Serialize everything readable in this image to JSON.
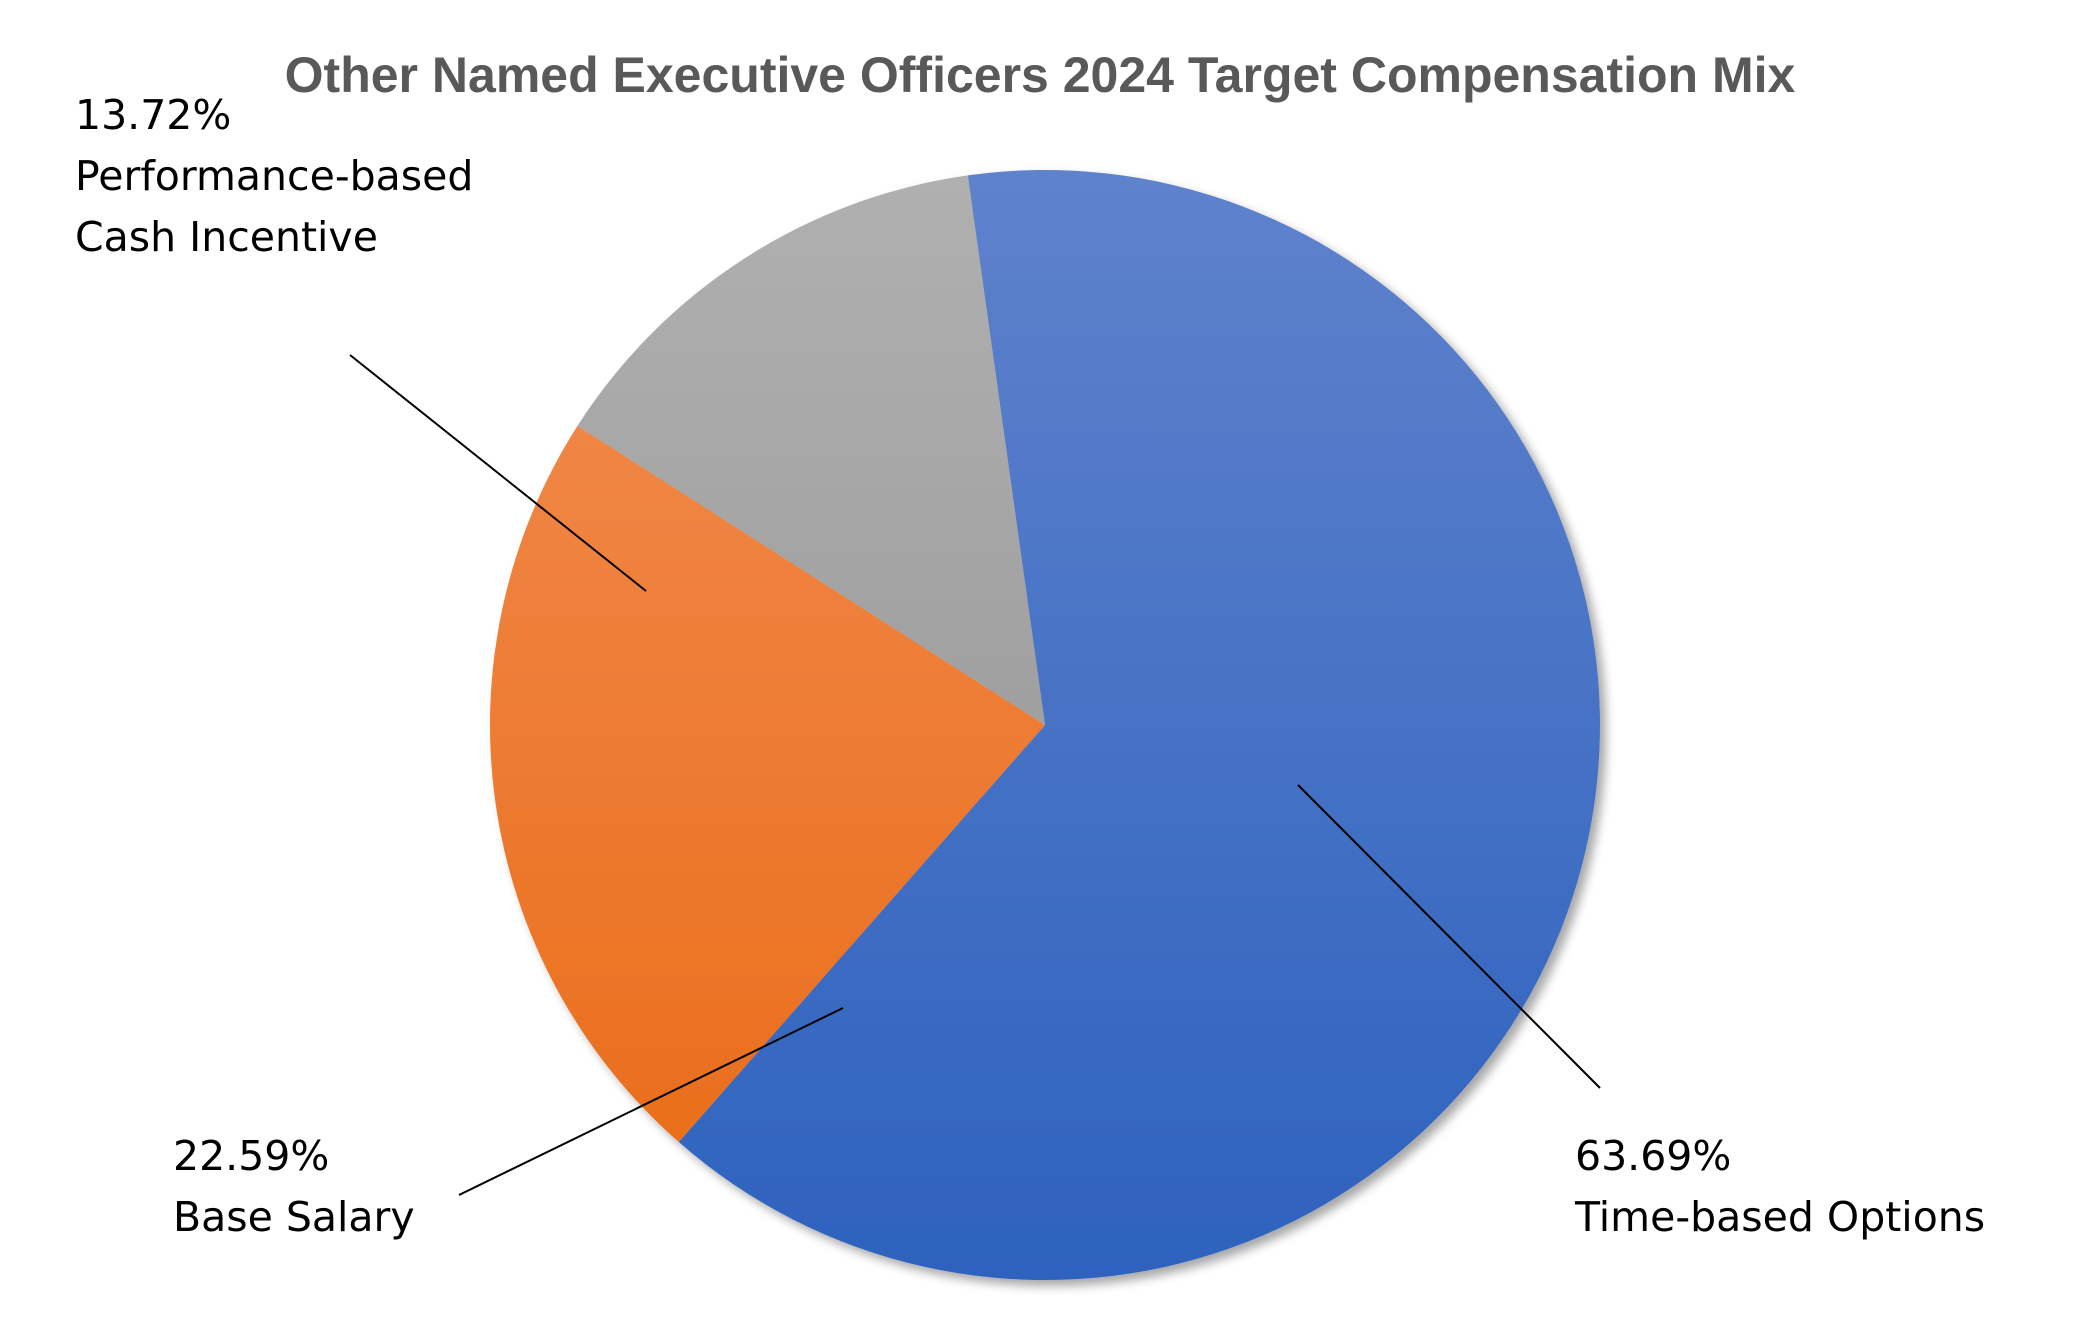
{
  "chart_data": {
    "type": "pie",
    "title": "Other Named Executive Officers 2024 Target Compensation Mix",
    "slices": [
      {
        "label": "Time-based Options",
        "value": 63.69,
        "value_text": "63.69%",
        "label_lines": [
          "Time-based Options"
        ],
        "color_top": "#5F82CC",
        "color_bottom": "#2D62BE"
      },
      {
        "label": "Base Salary",
        "value": 22.59,
        "value_text": "22.59%",
        "label_lines": [
          "Base Salary"
        ],
        "color_top": "#F28E53",
        "color_bottom": "#E96A15"
      },
      {
        "label": "Performance-based Cash Incentive",
        "value": 13.72,
        "value_text": "13.72%",
        "label_lines": [
          "Performance-based",
          "Cash Incentive"
        ],
        "color_top": "#B0B0B0",
        "color_bottom": "#8F8F8F"
      }
    ],
    "legend": "none",
    "data_labels": "outside with leader lines"
  }
}
